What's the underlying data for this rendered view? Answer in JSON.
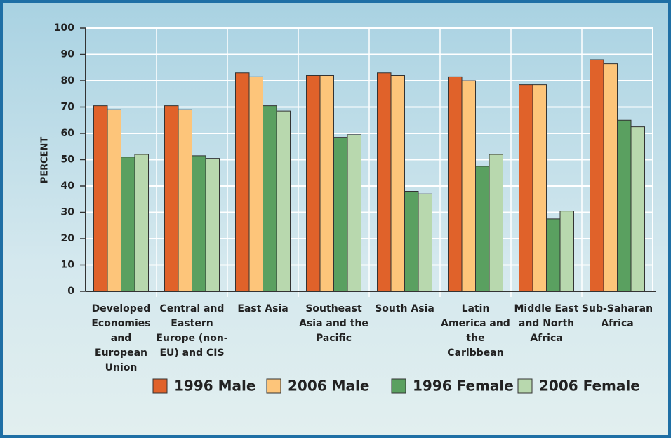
{
  "chart_data": {
    "type": "bar",
    "ylabel": "PERCENT",
    "categories": [
      "Developed Economies and European Union",
      "Central and Eastern Europe (non-EU) and CIS",
      "East Asia",
      "Southeast Asia and the Pacific",
      "South Asia",
      "Latin America and the Caribbean",
      "Middle East and North Africa",
      "Sub-Saharan Africa"
    ],
    "series": [
      {
        "name": "1996 Male",
        "color": "#e0622a",
        "values": [
          70.5,
          70.5,
          83,
          82,
          83,
          81.5,
          78.5,
          88
        ]
      },
      {
        "name": "2006 Male",
        "color": "#fdc57a",
        "values": [
          69,
          69,
          81.5,
          82,
          82,
          80,
          78.5,
          86.5
        ]
      },
      {
        "name": "1996 Female",
        "color": "#5aa060",
        "values": [
          51,
          51.5,
          70.5,
          58.5,
          38,
          47.5,
          27.5,
          65
        ]
      },
      {
        "name": "2006 Female",
        "color": "#b8d8ae",
        "values": [
          52,
          50.5,
          68.5,
          59.5,
          37,
          52,
          30.5,
          62.5
        ]
      }
    ],
    "ylim": [
      0,
      100
    ],
    "yticks": [
      0,
      10,
      20,
      30,
      40,
      50,
      60,
      70,
      80,
      90,
      100
    ],
    "grid": true,
    "legend": "bottom"
  }
}
